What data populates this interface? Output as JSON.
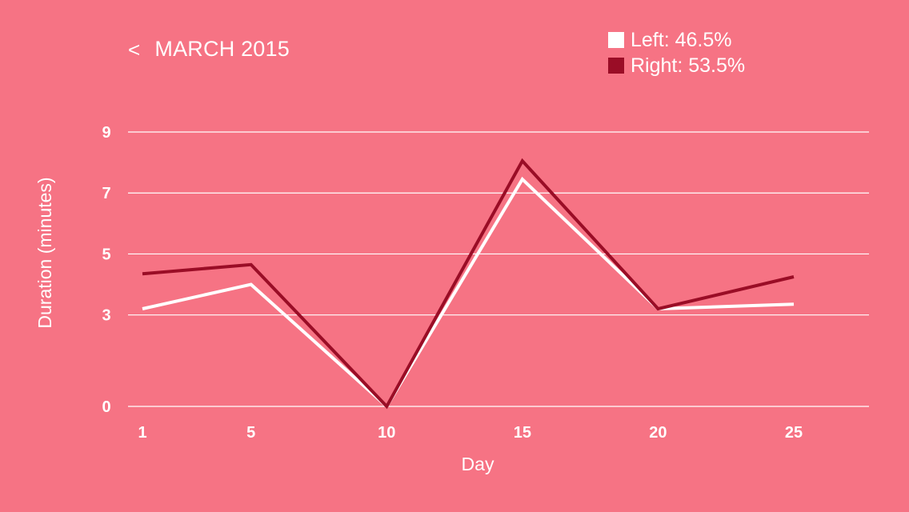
{
  "header": {
    "back_label": "<",
    "title": "MARCH 2015"
  },
  "legend": [
    {
      "label": "Left: 46.5%",
      "color": "#ffffff"
    },
    {
      "label": "Right: 53.5%",
      "color": "#9a0d26"
    }
  ],
  "colors": {
    "background": "#f67384",
    "grid": "#ffffff",
    "left_series": "#ffffff",
    "right_series": "#9a0d26"
  },
  "chart_data": {
    "type": "line",
    "xlabel": "Day",
    "ylabel": "Duration (minutes)",
    "x": [
      1,
      5,
      10,
      15,
      20,
      25
    ],
    "x_ticks": [
      "1",
      "5",
      "10",
      "15",
      "20",
      "25"
    ],
    "y_ticks": [
      "9",
      "7",
      "5",
      "3",
      "0"
    ],
    "ylim": [
      0,
      9
    ],
    "grid": true,
    "series": [
      {
        "name": "Left",
        "values": [
          3.2,
          4.0,
          0.0,
          7.45,
          3.2,
          3.35
        ]
      },
      {
        "name": "Right",
        "values": [
          4.35,
          4.65,
          0.0,
          8.05,
          3.2,
          4.25
        ]
      }
    ]
  }
}
